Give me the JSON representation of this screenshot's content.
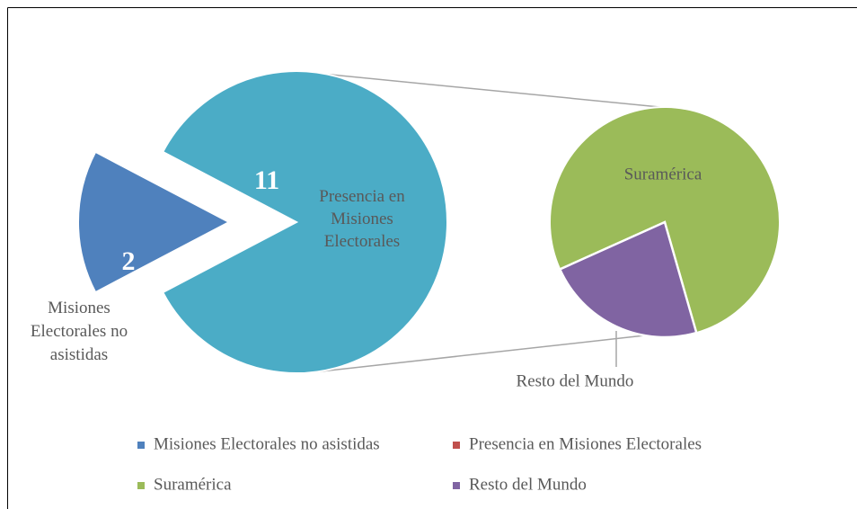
{
  "chart_data": {
    "type": "pie_of_pie",
    "categories": [
      "Misiones Electorales no asistidas",
      "Presencia en Misiones Electorales"
    ],
    "values": [
      2,
      11
    ],
    "colors": [
      "#4f81bd",
      "#4bacc6"
    ],
    "legend_colors": [
      "#4f81bd",
      "#c0504d"
    ],
    "secondary": {
      "categories": [
        "Suramérica",
        "Resto del Mundo"
      ],
      "values": [
        8.5,
        2.5
      ],
      "colors": [
        "#9bbb59",
        "#8064a2"
      ]
    }
  }
}
